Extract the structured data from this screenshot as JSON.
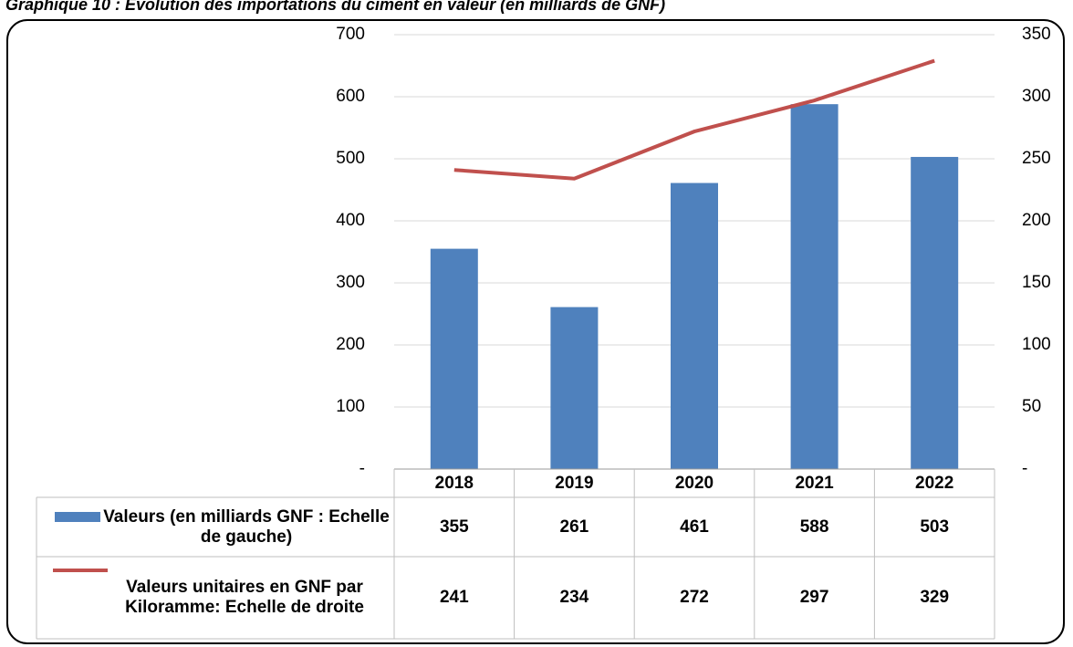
{
  "chart_data": {
    "type": "bar_line",
    "title": "Graphique 10 : Evolution des importations du ciment en valeur (en milliards de GNF)",
    "categories": [
      "2018",
      "2019",
      "2020",
      "2021",
      "2022"
    ],
    "series": [
      {
        "name": "Valeurs (en milliards GNF : Echelle de gauche)",
        "type": "bar",
        "color": "#4f81bd",
        "values": [
          355,
          261,
          461,
          588,
          503
        ]
      },
      {
        "name": "Valeurs unitaires en  GNF par Kiloramme: Echelle de droite",
        "type": "line",
        "axis": "y2",
        "color": "#c0504d",
        "values": [
          241,
          234,
          272,
          297,
          329
        ]
      }
    ],
    "ylim": [
      0,
      700
    ],
    "yticks": [
      {
        "value": 0,
        "label": "-"
      },
      100,
      200,
      300,
      400,
      500,
      600,
      700
    ],
    "y2lim": [
      0,
      350
    ],
    "y2ticks": [
      {
        "value": 0,
        "label": "-"
      },
      50,
      100,
      150,
      200,
      250,
      300,
      350
    ],
    "grid": true,
    "data_table": true
  }
}
